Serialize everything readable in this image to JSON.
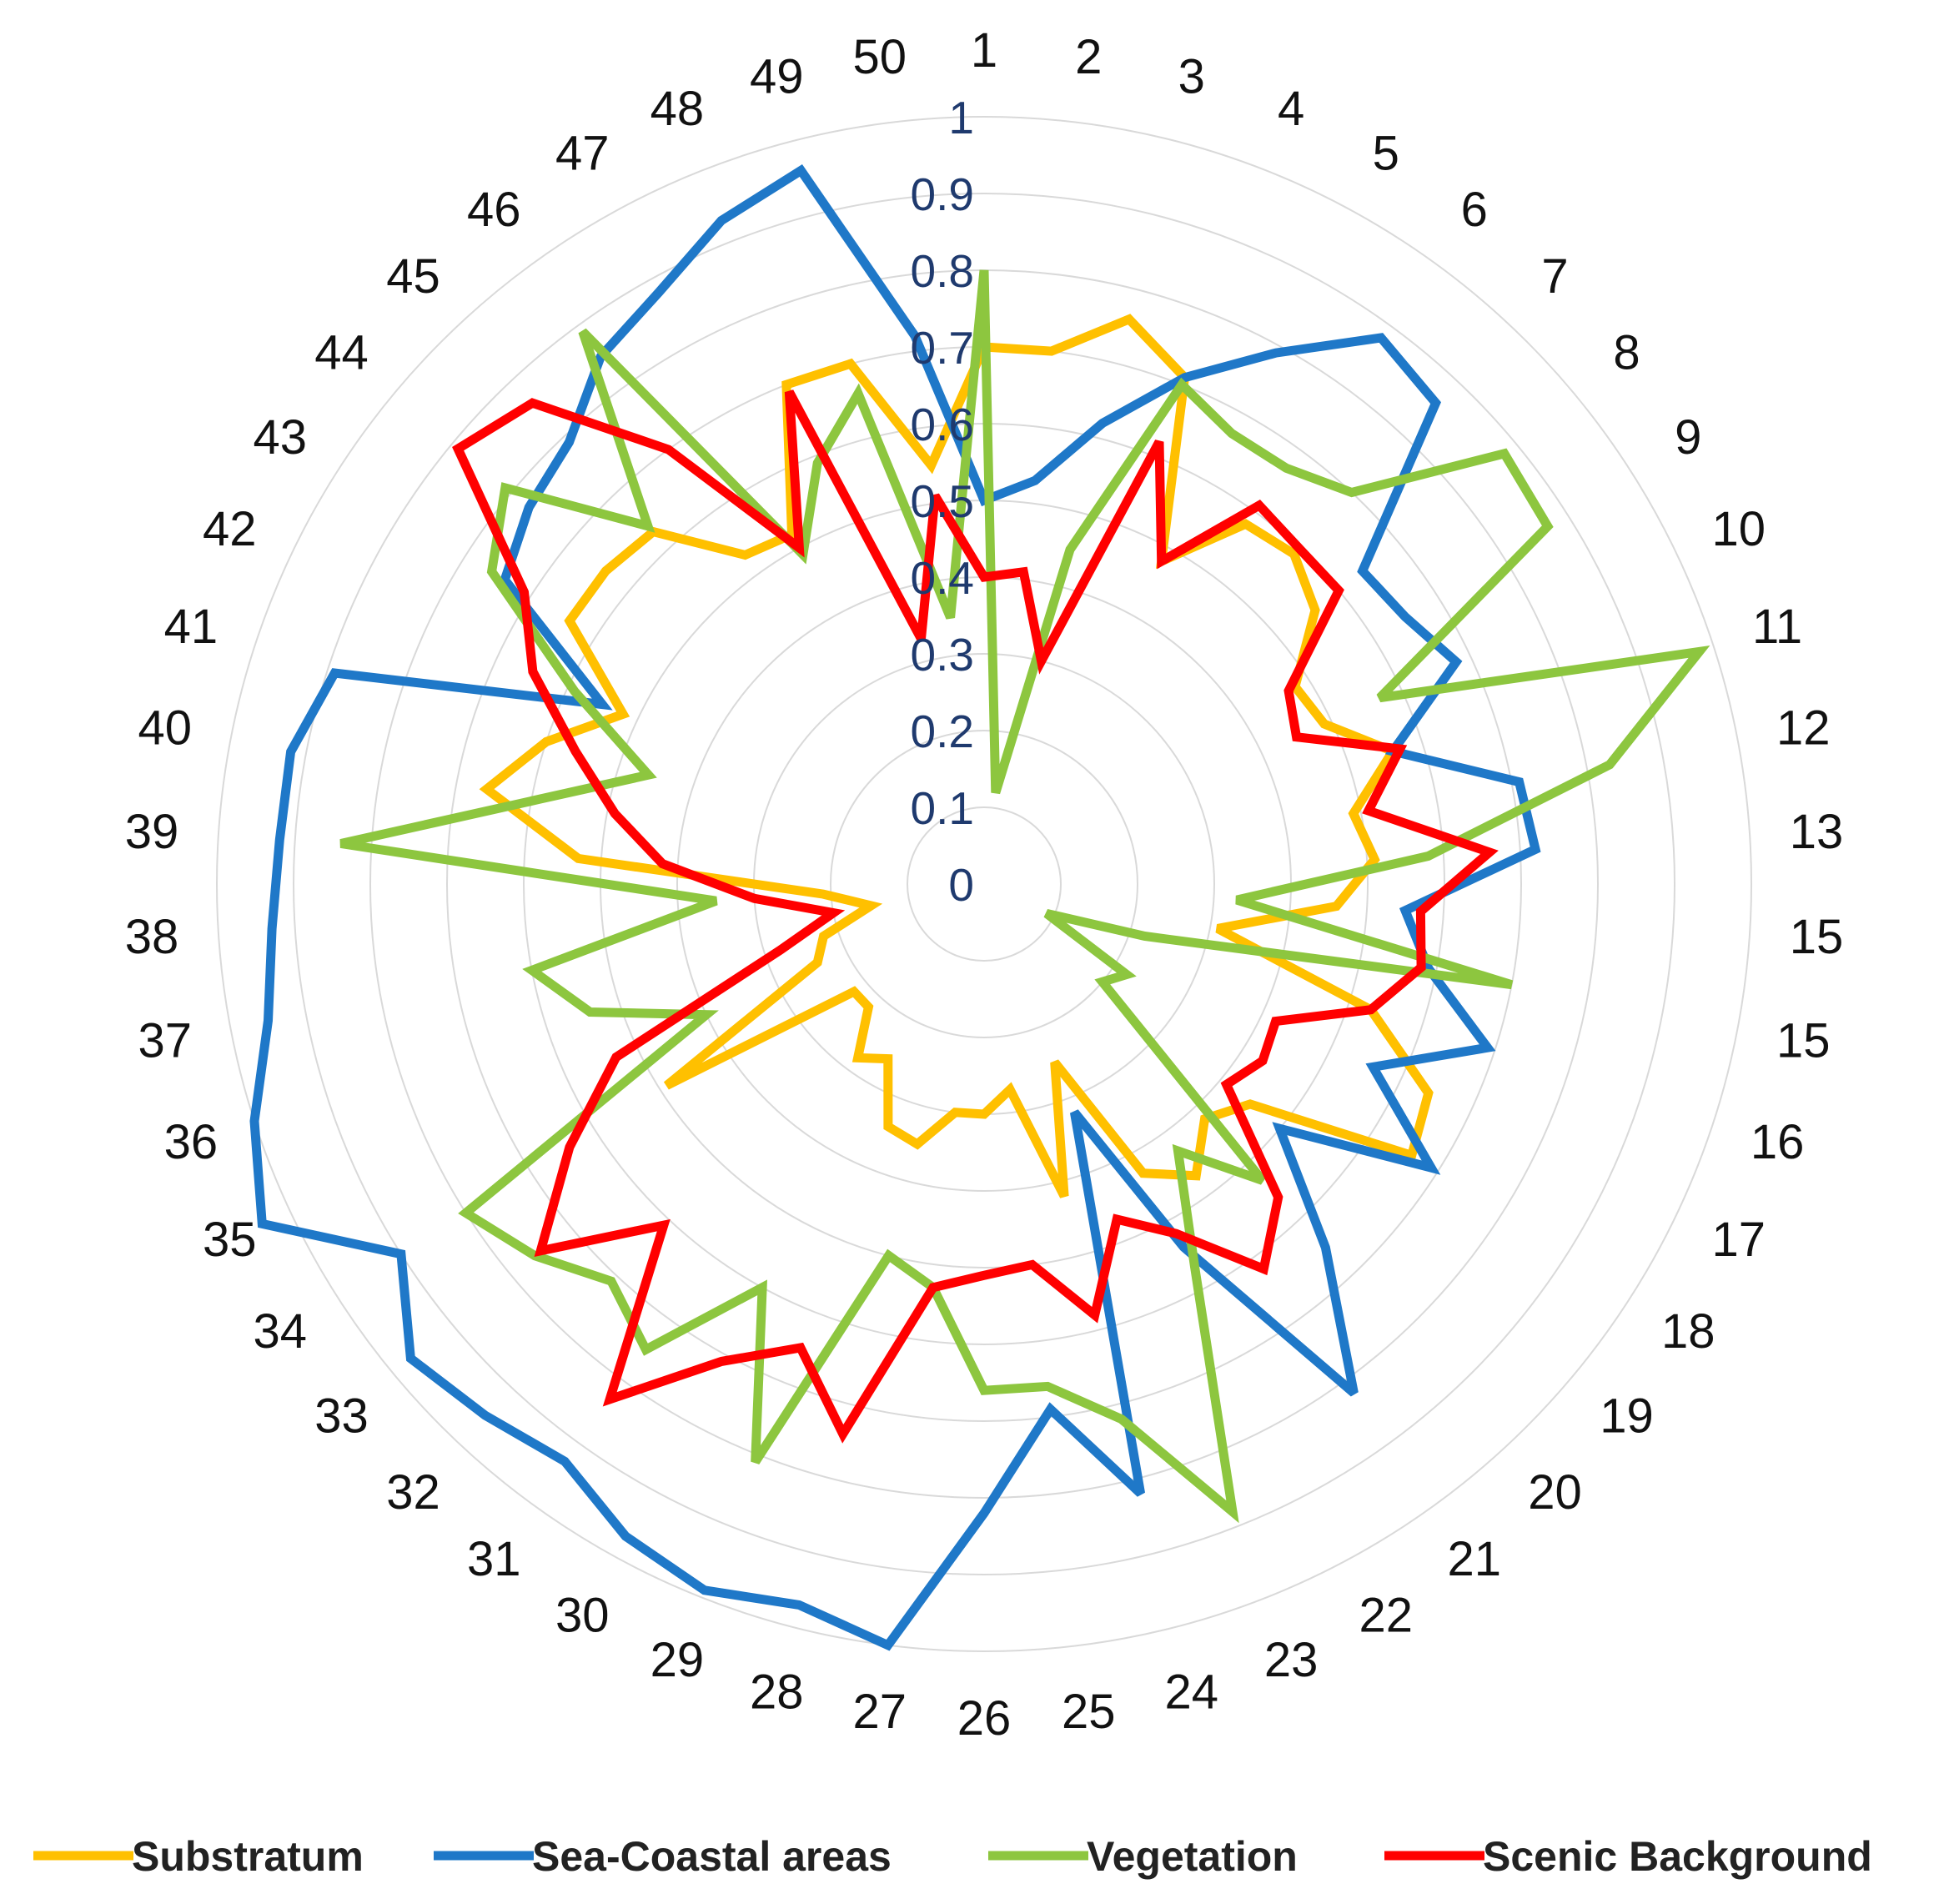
{
  "chart_data": {
    "type": "radar",
    "categories": [
      "1",
      "2",
      "3",
      "4",
      "5",
      "6",
      "7",
      "8",
      "9",
      "10",
      "11",
      "12",
      "13",
      "15",
      "15",
      "16",
      "17",
      "18",
      "19",
      "20",
      "21",
      "22",
      "23",
      "24",
      "25",
      "26",
      "27",
      "28",
      "29",
      "30",
      "31",
      "32",
      "33",
      "34",
      "35",
      "36",
      "37",
      "38",
      "39",
      "40",
      "41",
      "42",
      "43",
      "44",
      "45",
      "46",
      "47",
      "48",
      "49",
      "50"
    ],
    "rlim": [
      0,
      1
    ],
    "ticks": [
      "0",
      "0.1",
      "0.2",
      "0.3",
      "0.4",
      "0.5",
      "0.6",
      "0.7",
      "0.8",
      "0.9",
      "1"
    ],
    "grid": true,
    "legend_position": "bottom",
    "series": [
      {
        "name": "Substratum",
        "color": "#ffc000",
        "values": [
          0.7,
          0.7,
          0.76,
          0.71,
          0.48,
          0.58,
          0.59,
          0.56,
          0.48,
          0.49,
          0.56,
          0.49,
          0.51,
          0.46,
          0.31,
          0.53,
          0.64,
          0.66,
          0.45,
          0.42,
          0.47,
          0.43,
          0.25,
          0.42,
          0.27,
          0.3,
          0.3,
          0.35,
          0.34,
          0.26,
          0.28,
          0.22,
          0.22,
          0.49,
          0.24,
          0.22,
          0.15,
          0.21,
          0.53,
          0.66,
          0.6,
          0.52,
          0.64,
          0.64,
          0.63,
          0.53,
          0.52,
          0.7,
          0.7,
          0.55
        ]
      },
      {
        "name": "Sea-Coastal areas",
        "color": "#1f78c8",
        "values": [
          0.5,
          0.53,
          0.62,
          0.71,
          0.79,
          0.88,
          0.86,
          0.64,
          0.65,
          0.68,
          0.56,
          0.71,
          0.72,
          0.55,
          0.59,
          0.69,
          0.56,
          0.69,
          0.5,
          0.65,
          0.82,
          0.54,
          0.32,
          0.82,
          0.69,
          0.82,
          1.0,
          0.97,
          0.99,
          0.97,
          0.93,
          0.95,
          0.97,
          0.9,
          1.04,
          1.0,
          0.95,
          0.93,
          0.92,
          0.92,
          0.89,
          0.55,
          0.74,
          0.77,
          0.79,
          0.85,
          0.88,
          0.93,
          0.96,
          0.72
        ]
      },
      {
        "name": "Vegetation",
        "color": "#8dc63f",
        "values": [
          0.8,
          0.12,
          0.45,
          0.7,
          0.67,
          0.67,
          0.7,
          0.88,
          0.87,
          0.57,
          0.98,
          0.83,
          0.58,
          0.33,
          0.7,
          0.22,
          0.09,
          0.22,
          0.2,
          0.53,
          0.43,
          0.57,
          0.88,
          0.72,
          0.66,
          0.66,
          0.53,
          0.5,
          0.81,
          0.6,
          0.75,
          0.71,
          0.76,
          0.8,
          0.4,
          0.54,
          0.6,
          0.35,
          0.84,
          0.59,
          0.46,
          0.59,
          0.76,
          0.81,
          0.64,
          0.89,
          0.49,
          0.59,
          0.66,
          0.35
        ]
      },
      {
        "name": "Scenic Background",
        "color": "#ff0000",
        "values": [
          0.4,
          0.41,
          0.3,
          0.62,
          0.48,
          0.61,
          0.6,
          0.6,
          0.47,
          0.45,
          0.57,
          0.51,
          0.66,
          0.57,
          0.58,
          0.53,
          0.42,
          0.43,
          0.41,
          0.56,
          0.62,
          0.52,
          0.47,
          0.58,
          0.5,
          0.51,
          0.53,
          0.74,
          0.65,
          0.71,
          0.83,
          0.61,
          0.75,
          0.64,
          0.53,
          0.28,
          0.2,
          0.3,
          0.42,
          0.49,
          0.56,
          0.65,
          0.71,
          0.89,
          0.86,
          0.7,
          0.5,
          0.69,
          0.33,
          0.51
        ]
      }
    ]
  }
}
